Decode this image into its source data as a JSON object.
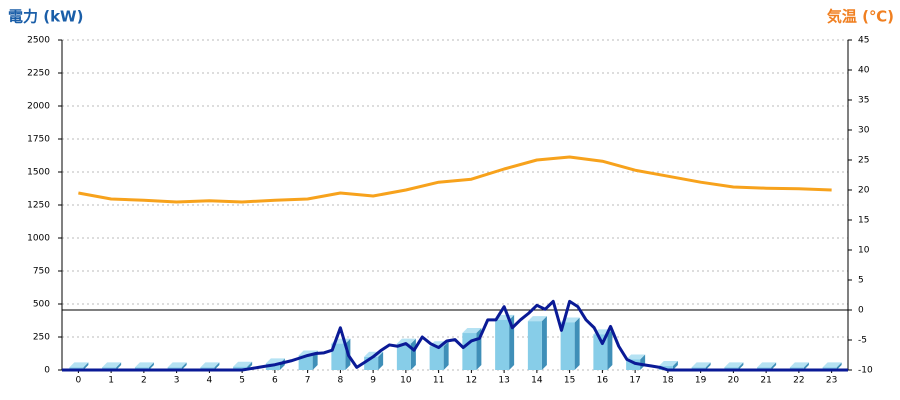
{
  "chart_data": {
    "type": "combo",
    "title_left": "電力 (kW)",
    "title_right": "気温 (℃)",
    "title_left_color": "#1a5ea8",
    "title_right_color": "#f07f20",
    "xlim": [
      -0.5,
      23.5
    ],
    "xticks": [
      0,
      1,
      2,
      3,
      4,
      5,
      6,
      7,
      8,
      9,
      10,
      11,
      12,
      13,
      14,
      15,
      16,
      17,
      18,
      19,
      20,
      21,
      22,
      23
    ],
    "ylim": [
      0,
      2500
    ],
    "yticks": [
      0,
      250,
      500,
      750,
      1000,
      1250,
      1500,
      1750,
      2000,
      2250,
      2500
    ],
    "y2lim": [
      -10,
      45
    ],
    "y2ticks": [
      -10,
      -5,
      0,
      5,
      10,
      15,
      20,
      25,
      30,
      35,
      40,
      45
    ],
    "y2_reference_line": 0,
    "grid": true,
    "series": [
      {
        "type": "bar",
        "color": "#87cde8",
        "x": [
          0,
          1,
          2,
          3,
          4,
          5,
          6,
          7,
          8,
          9,
          10,
          11,
          12,
          13,
          14,
          15,
          16,
          17,
          18,
          19,
          20,
          21,
          22,
          23
        ],
        "values": [
          20,
          20,
          20,
          20,
          20,
          25,
          50,
          110,
          200,
          100,
          200,
          180,
          280,
          380,
          370,
          360,
          270,
          80,
          30,
          20,
          20,
          20,
          20,
          20
        ]
      },
      {
        "type": "line",
        "color": "#0a1a96",
        "x": [
          -0.5,
          4.75,
          5,
          5.25,
          5.5,
          5.75,
          6,
          6.25,
          6.5,
          6.75,
          7,
          7.25,
          7.5,
          7.75,
          8,
          8.25,
          8.5,
          8.75,
          9,
          9.25,
          9.5,
          9.75,
          10,
          10.25,
          10.5,
          10.75,
          11,
          11.25,
          11.5,
          11.75,
          12,
          12.25,
          12.5,
          12.75,
          13,
          13.25,
          13.5,
          13.75,
          14,
          14.25,
          14.5,
          14.75,
          15,
          15.25,
          15.5,
          15.75,
          16,
          16.25,
          16.5,
          16.75,
          17,
          17.25,
          17.5,
          17.75,
          18,
          23.5
        ],
        "values": [
          0,
          0,
          0,
          10,
          20,
          30,
          40,
          55,
          70,
          90,
          110,
          125,
          130,
          150,
          320,
          110,
          20,
          60,
          100,
          150,
          190,
          180,
          200,
          150,
          250,
          200,
          170,
          220,
          230,
          170,
          220,
          240,
          380,
          380,
          480,
          320,
          380,
          430,
          490,
          460,
          520,
          300,
          520,
          480,
          380,
          320,
          200,
          330,
          180,
          80,
          50,
          40,
          30,
          20,
          0,
          0
        ]
      },
      {
        "type": "line",
        "axis": "y2",
        "color": "#f7a21c",
        "x": [
          0,
          1,
          2,
          3,
          4,
          5,
          6,
          7,
          8,
          9,
          10,
          11,
          12,
          13,
          14,
          15,
          16,
          17,
          18,
          19,
          20,
          21,
          22,
          23
        ],
        "values": [
          19.5,
          18.5,
          18.3,
          18,
          18.2,
          18,
          18.3,
          18.5,
          19.5,
          19,
          20,
          21.3,
          21.8,
          23.5,
          25,
          25.5,
          24.8,
          23.3,
          22.3,
          21.3,
          20.5,
          20.3,
          20.2,
          20
        ]
      }
    ]
  }
}
